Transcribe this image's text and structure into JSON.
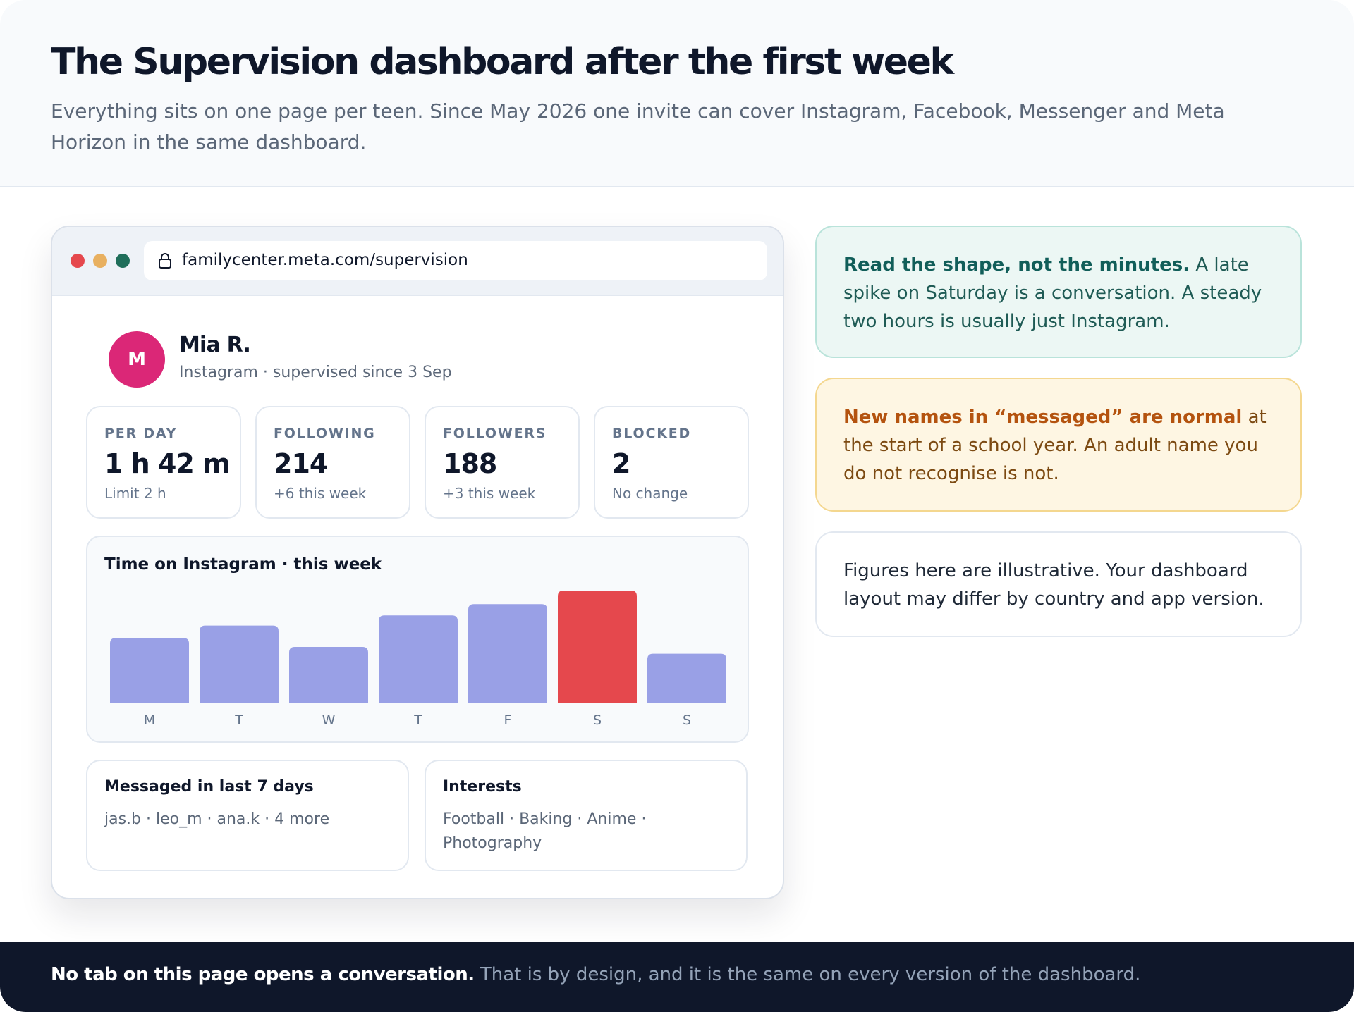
{
  "colors": {
    "bar": "#99a0e6",
    "bar_highlight": "#e5484d",
    "avatar": "#db2777",
    "footer_bg": "#0f172a"
  },
  "header": {
    "title": "The Supervision dashboard after the first week",
    "subtitle": "Everything sits on one page per teen. Since May 2026 one invite can cover Instagram, Facebook, Messenger and Meta Horizon in the same dashboard."
  },
  "browser": {
    "url": "familycenter.meta.com/supervision",
    "lock_icon": "lock-icon"
  },
  "profile": {
    "initial": "M",
    "name": "Mia R.",
    "subtitle": "Instagram · supervised since 3 Sep"
  },
  "stats": [
    {
      "label": "PER DAY",
      "value": "1 h 42 m",
      "note": "Limit 2 h"
    },
    {
      "label": "FOLLOWING",
      "value": "214",
      "note": "+6 this week"
    },
    {
      "label": "FOLLOWERS",
      "value": "188",
      "note": "+3 this week"
    },
    {
      "label": "BLOCKED",
      "value": "2",
      "note": "No change"
    }
  ],
  "chart_data": {
    "type": "bar",
    "title": "Time on Instagram · this week",
    "categories": [
      "M",
      "T",
      "W",
      "T",
      "F",
      "S",
      "S"
    ],
    "values": [
      0.58,
      0.69,
      0.5,
      0.78,
      0.88,
      1.0,
      0.44
    ],
    "highlight_index": 5,
    "grid": false,
    "legend": "none"
  },
  "messaged": {
    "title": "Messaged in last 7 days",
    "body": "jas.b · leo_m · ana.k · 4 more"
  },
  "interests": {
    "title": "Interests",
    "body": "Football · Baking · Anime · Photography"
  },
  "notes": {
    "teal_bold": "Read the shape, not the minutes.",
    "teal_rest": " A late spike on Saturday is a conversation. A steady two hours is usually just Instagram.",
    "amber_bold": "New names in “messaged” are normal",
    "amber_rest": " at the start of a school year. An adult name you do not recognise is not.",
    "plain": "Figures here are illustrative. Your dashboard layout may differ by country and app version."
  },
  "footer": {
    "bold": "No tab on this page opens a conversation.",
    "rest": " That is by design, and it is the same on every version of the dashboard."
  }
}
